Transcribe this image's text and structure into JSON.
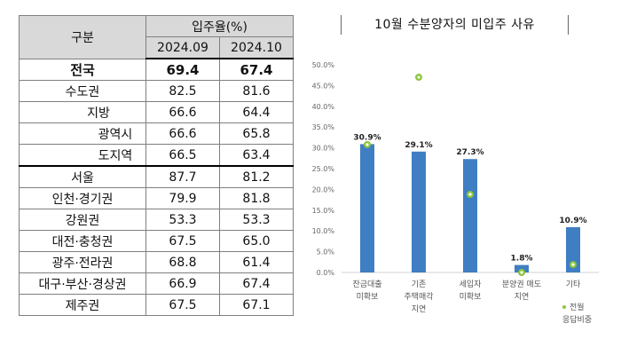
{
  "table": {
    "header_category": "구분",
    "header_group": "입주율(%)",
    "periods": [
      "2024.09",
      "2024.10"
    ],
    "rows": [
      {
        "label": "전국",
        "v1": "69.4",
        "v2": "67.4"
      },
      {
        "label": "수도권",
        "v1": "82.5",
        "v2": "81.6"
      },
      {
        "label": "지방",
        "v1": "66.6",
        "v2": "64.4"
      },
      {
        "label": "광역시",
        "v1": "66.6",
        "v2": "65.8"
      },
      {
        "label": "도지역",
        "v1": "66.5",
        "v2": "63.4"
      },
      {
        "label": "서울",
        "v1": "87.7",
        "v2": "81.2"
      },
      {
        "label": "인천·경기권",
        "v1": "79.9",
        "v2": "81.8"
      },
      {
        "label": "강원권",
        "v1": "53.3",
        "v2": "53.3"
      },
      {
        "label": "대전·충청권",
        "v1": "67.5",
        "v2": "65.0"
      },
      {
        "label": "광주·전라권",
        "v1": "68.8",
        "v2": "61.4"
      },
      {
        "label": "대구·부산·경상권",
        "v1": "66.9",
        "v2": "67.4"
      },
      {
        "label": "제주권",
        "v1": "67.5",
        "v2": "67.1"
      }
    ]
  },
  "chart_data": {
    "type": "bar",
    "title": "10월 수분양자의 미입주 사유",
    "categories": [
      [
        "잔금대출",
        "미확보"
      ],
      [
        "기존",
        "주택매각",
        "지연"
      ],
      [
        "세입자",
        "미확보"
      ],
      [
        "분양권 매도",
        "지연"
      ],
      [
        "기타"
      ]
    ],
    "series": [
      {
        "values": [
          30.9,
          29.1,
          27.3,
          1.8,
          10.9
        ],
        "labels": [
          "30.9%",
          "29.1%",
          "27.3%",
          "1.8%",
          "10.9%"
        ]
      },
      {
        "name": "전월 응답비중",
        "values": [
          30.8,
          47.0,
          18.8,
          0.0,
          1.9
        ]
      }
    ],
    "ylim": [
      0,
      50
    ],
    "yticks": [
      "0.0%",
      "5.0%",
      "10.0%",
      "15.0%",
      "20.0%",
      "25.0%",
      "30.0%",
      "35.0%",
      "40.0%",
      "45.0%",
      "50.0%"
    ],
    "legend": [
      "전월",
      "응답비중"
    ],
    "legend_position": "bottom-right",
    "colors": {
      "bar": "#3f7ec3",
      "marker": "#8cc63e",
      "marker_inner": "#ffffff"
    }
  }
}
